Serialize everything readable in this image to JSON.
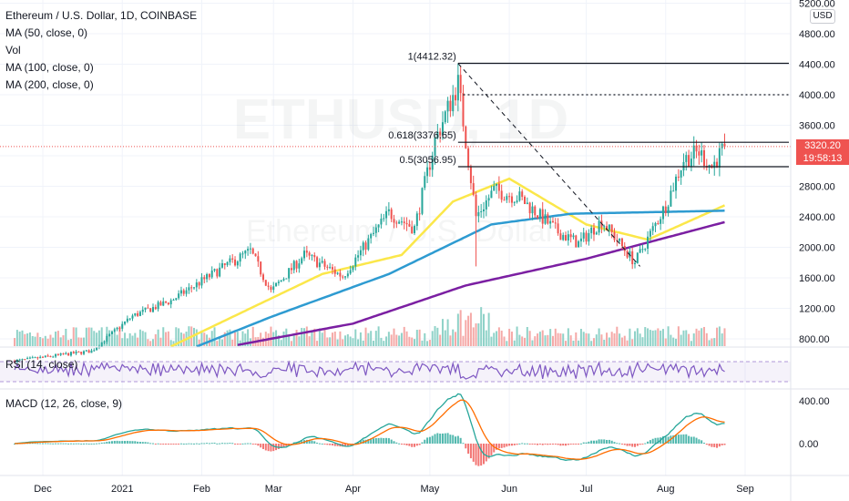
{
  "legend": {
    "title": "Ethereum / U.S. Dollar, 1D, COINBASE",
    "ma50": "MA (50, close, 0)",
    "vol": "Vol",
    "ma100": "MA (100, close, 0)",
    "ma200": "MA (200, close, 0)"
  },
  "watermark": {
    "symbol": "ETHUSD, 1D",
    "name": "Ethereum / U.S. Dollar"
  },
  "currency_label": "USD",
  "last_price": {
    "value": "3320.20",
    "countdown": "19:58:13"
  },
  "rsi": {
    "label": "RSI (14, close)"
  },
  "macd": {
    "label": "MACD (12, 26, close, 9)",
    "ticks": [
      "400.00",
      "0.00"
    ]
  },
  "colors": {
    "up": "#26a69a",
    "down": "#ef5350",
    "ma50": "#fbe74a",
    "ma100": "#2e9bd1",
    "ma200": "#7b1fa2",
    "rsi": "#7e57c2",
    "macd_line": "#26a69a",
    "signal_line": "#ff6d00"
  },
  "chart_data": {
    "type": "candlestick",
    "title": "Ethereum / U.S. Dollar, 1D, COINBASE",
    "price_axis": {
      "ticks": [
        "5200.00",
        "4800.00",
        "4400.00",
        "4000.00",
        "3600.00",
        "3200.00",
        "2800.00",
        "2400.00",
        "2000.00",
        "1600.00",
        "1200.00",
        "800.00"
      ],
      "ylim": [
        650,
        5250
      ]
    },
    "time_axis": {
      "ticks": [
        "Dec",
        "2021",
        "Feb",
        "Mar",
        "Apr",
        "May",
        "Jun",
        "Jul",
        "Aug",
        "Sep"
      ]
    },
    "ohlc_anchors": [
      {
        "date": "2020-11-20",
        "close": 510
      },
      {
        "date": "2020-12-20",
        "close": 640
      },
      {
        "date": "2021-01-05",
        "close": 1100
      },
      {
        "date": "2021-01-20",
        "close": 1300
      },
      {
        "date": "2021-02-10",
        "close": 1750
      },
      {
        "date": "2021-02-20",
        "close": 1950
      },
      {
        "date": "2021-02-28",
        "close": 1420
      },
      {
        "date": "2021-03-13",
        "close": 1900
      },
      {
        "date": "2021-03-28",
        "close": 1620
      },
      {
        "date": "2021-04-15",
        "close": 2450
      },
      {
        "date": "2021-04-25",
        "close": 2250
      },
      {
        "date": "2021-05-03",
        "close": 3400
      },
      {
        "date": "2021-05-12",
        "close": 4150
      },
      {
        "date": "2021-05-19",
        "close": 2400
      },
      {
        "date": "2021-05-26",
        "close": 2750
      },
      {
        "date": "2021-06-05",
        "close": 2650
      },
      {
        "date": "2021-06-20",
        "close": 2200
      },
      {
        "date": "2021-06-28",
        "close": 2050
      },
      {
        "date": "2021-07-07",
        "close": 2350
      },
      {
        "date": "2021-07-20",
        "close": 1800
      },
      {
        "date": "2021-08-01",
        "close": 2550
      },
      {
        "date": "2021-08-08",
        "close": 3150
      },
      {
        "date": "2021-08-14",
        "close": 3250
      },
      {
        "date": "2021-08-19",
        "close": 3050
      },
      {
        "date": "2021-08-24",
        "close": 3320
      }
    ],
    "moving_averages": [
      {
        "name": "MA (50, close, 0)",
        "points": [
          [
            "2021-01-20",
            700
          ],
          [
            "2021-02-15",
            1120
          ],
          [
            "2021-03-20",
            1650
          ],
          [
            "2021-04-20",
            1900
          ],
          [
            "2021-05-10",
            2600
          ],
          [
            "2021-06-01",
            2900
          ],
          [
            "2021-07-01",
            2300
          ],
          [
            "2021-07-25",
            2100
          ],
          [
            "2021-08-24",
            2550
          ]
        ]
      },
      {
        "name": "MA (100, close, 0)",
        "points": [
          [
            "2021-01-30",
            700
          ],
          [
            "2021-03-01",
            1100
          ],
          [
            "2021-04-15",
            1650
          ],
          [
            "2021-05-25",
            2300
          ],
          [
            "2021-06-25",
            2440
          ],
          [
            "2021-08-24",
            2480
          ]
        ]
      },
      {
        "name": "MA (200, close, 0)",
        "points": [
          [
            "2021-02-15",
            720
          ],
          [
            "2021-04-01",
            1000
          ],
          [
            "2021-05-15",
            1500
          ],
          [
            "2021-07-01",
            1850
          ],
          [
            "2021-08-24",
            2330
          ]
        ]
      }
    ],
    "fibonacci": [
      {
        "label": "1(4412.32)",
        "value": 4412.32
      },
      {
        "label": "0.618(3376.65)",
        "value": 3376.65
      },
      {
        "label": "0.5(3056.95)",
        "value": 3056.95
      }
    ],
    "horizontal_levels": [
      4000
    ],
    "trendline": {
      "from": [
        "2021-05-12",
        4410
      ],
      "to": [
        "2021-07-22",
        1750
      ]
    },
    "last_price": 3320.2
  }
}
